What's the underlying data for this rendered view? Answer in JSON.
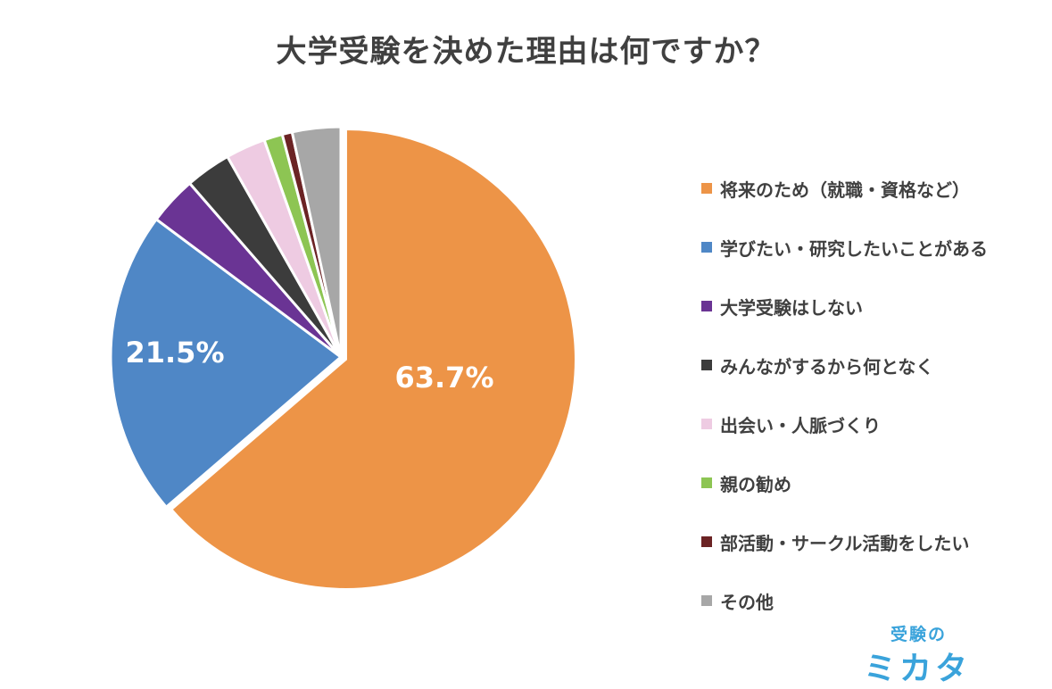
{
  "chart_data": {
    "type": "pie",
    "title": "大学受験を決めた理由は何ですか？",
    "start_angle_deg": 0,
    "direction": "clockwise",
    "legend_position": "right",
    "slices": [
      {
        "label": "将来のため（就職・資格など）",
        "value": 63.7,
        "color": "#ed9447",
        "show_label": true,
        "data_label": "63.7%"
      },
      {
        "label": "学びたい・研究したいことがある",
        "value": 21.5,
        "color": "#4f87c6",
        "show_label": true,
        "data_label": "21.5%"
      },
      {
        "label": "大学受験はしない",
        "value": 3.4,
        "color": "#6a3494",
        "show_label": false,
        "data_label": ""
      },
      {
        "label": "みんながするから何となく",
        "value": 3.2,
        "color": "#3c3c3c",
        "show_label": false,
        "data_label": ""
      },
      {
        "label": "出会い・人脈づくり",
        "value": 2.8,
        "color": "#eecbe2",
        "show_label": false,
        "data_label": ""
      },
      {
        "label": "親の勧め",
        "value": 1.3,
        "color": "#8dc553",
        "show_label": false,
        "data_label": ""
      },
      {
        "label": "部活動・サークル活動をしたい",
        "value": 0.7,
        "color": "#6b2324",
        "show_label": false,
        "data_label": ""
      },
      {
        "label": "その他",
        "value": 3.4,
        "color": "#a7a7a7",
        "show_label": false,
        "data_label": ""
      }
    ]
  },
  "brand": {
    "top": "受験の",
    "bottom": "ミカタ"
  }
}
